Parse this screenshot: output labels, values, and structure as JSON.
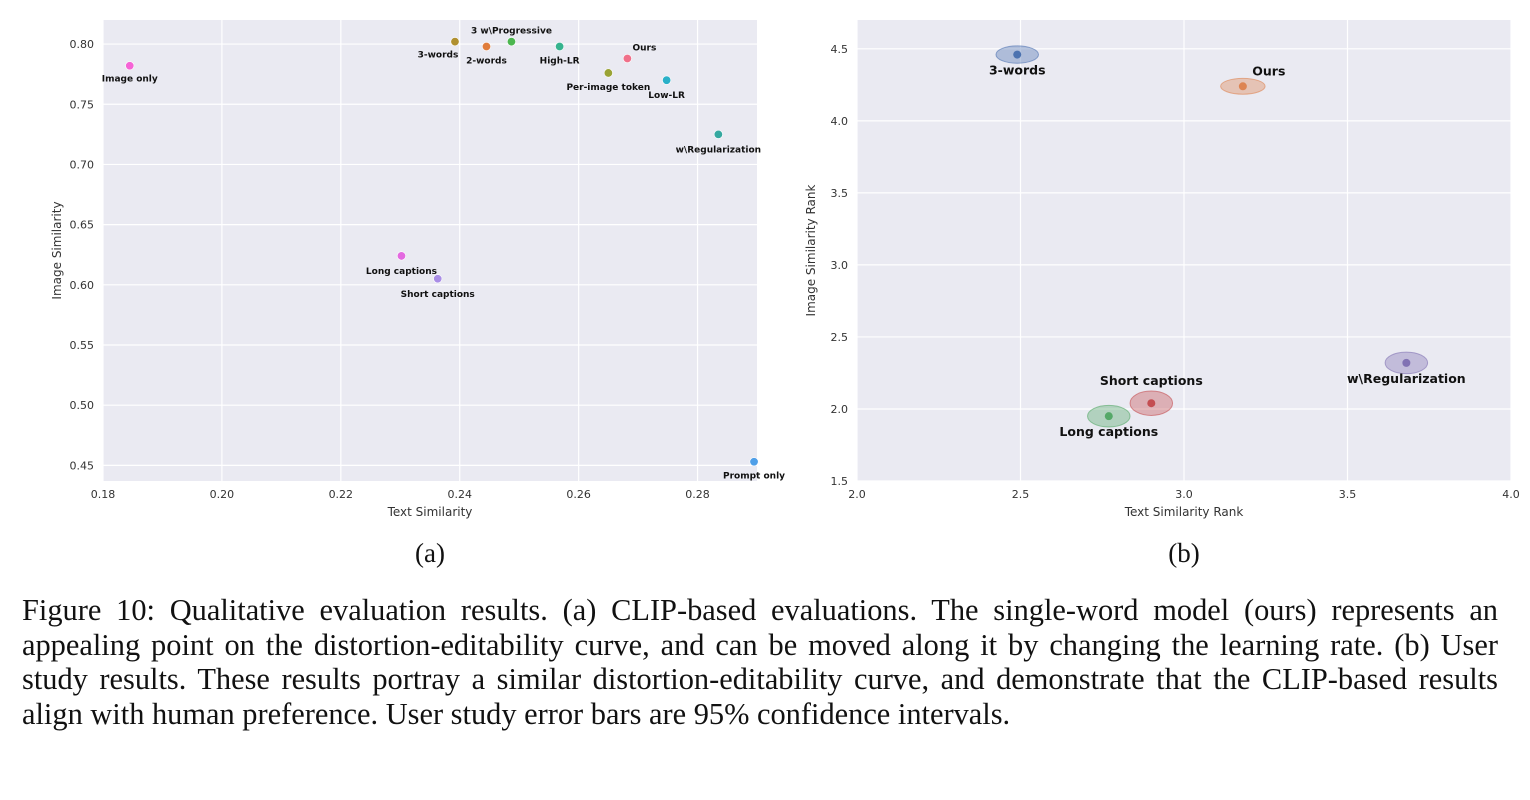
{
  "caption": "Figure 10: Qualitative evaluation results. (a) CLIP-based evaluations. The single-word model (ours) represents an appealing point on the distortion-editability curve, and can be moved along it by changing the learning rate. (b) User study results. These results portray a similar distortion-editability curve, and demonstrate that the CLIP-based results align with human preference. User study error bars are 95% confidence intervals.",
  "chart_data": [
    {
      "type": "scatter",
      "panel_label": "(a)",
      "xlabel": "Text Similarity",
      "ylabel": "Image Similarity",
      "xlim": [
        0.18,
        0.29
      ],
      "ylim": [
        0.437,
        0.82
      ],
      "xticks": [
        "0.18",
        "0.20",
        "0.22",
        "0.24",
        "0.26",
        "0.28"
      ],
      "yticks": [
        "0.45",
        "0.50",
        "0.55",
        "0.60",
        "0.65",
        "0.70",
        "0.75",
        "0.80"
      ],
      "grid": true,
      "background": "#eaeaf2",
      "points": [
        {
          "label": "Image only",
          "x": 0.1845,
          "y": 0.782,
          "color": "#f564d6"
        },
        {
          "label": "3-words",
          "x": 0.2392,
          "y": 0.802,
          "color": "#b09030"
        },
        {
          "label": "2-words",
          "x": 0.2445,
          "y": 0.798,
          "color": "#e07c3a"
        },
        {
          "label": "3 w\\Progressive",
          "x": 0.2487,
          "y": 0.802,
          "color": "#4cb64f"
        },
        {
          "label": "High-LR",
          "x": 0.2568,
          "y": 0.798,
          "color": "#36b38e"
        },
        {
          "label": "Ours",
          "x": 0.2682,
          "y": 0.788,
          "color": "#f0708a"
        },
        {
          "label": "Per-image token",
          "x": 0.265,
          "y": 0.776,
          "color": "#9aa335"
        },
        {
          "label": "Low-LR",
          "x": 0.2748,
          "y": 0.77,
          "color": "#2ab0c8"
        },
        {
          "label": "w\\Regularization",
          "x": 0.2835,
          "y": 0.725,
          "color": "#35a8a0"
        },
        {
          "label": "Long captions",
          "x": 0.2302,
          "y": 0.624,
          "color": "#e36ae0"
        },
        {
          "label": "Short captions",
          "x": 0.2363,
          "y": 0.605,
          "color": "#a98de6"
        },
        {
          "label": "Prompt only",
          "x": 0.2895,
          "y": 0.453,
          "color": "#4f9fe8"
        }
      ]
    },
    {
      "type": "scatter",
      "panel_label": "(b)",
      "xlabel": "Text Similarity Rank",
      "ylabel": "Image Similarity Rank",
      "xlim": [
        2.0,
        4.0
      ],
      "ylim": [
        1.5,
        4.7
      ],
      "xticks": [
        "2.0",
        "2.5",
        "3.0",
        "3.5",
        "4.0"
      ],
      "yticks": [
        "1.5",
        "2.0",
        "2.5",
        "3.0",
        "3.5",
        "4.0",
        "4.5"
      ],
      "grid": true,
      "background": "#eaeaf2",
      "points": [
        {
          "label": "3-words",
          "x": 2.49,
          "y": 4.46,
          "x_ci": 0.065,
          "y_ci": 0.06,
          "color": "#4c72b0"
        },
        {
          "label": "Ours",
          "x": 3.18,
          "y": 4.24,
          "x_ci": 0.068,
          "y_ci": 0.055,
          "color": "#dd8452"
        },
        {
          "label": "w\\Regularization",
          "x": 3.68,
          "y": 2.32,
          "x_ci": 0.065,
          "y_ci": 0.075,
          "color": "#8172b3"
        },
        {
          "label": "Short captions",
          "x": 2.9,
          "y": 2.04,
          "x_ci": 0.065,
          "y_ci": 0.085,
          "color": "#c44e52"
        },
        {
          "label": "Long captions",
          "x": 2.77,
          "y": 1.95,
          "x_ci": 0.065,
          "y_ci": 0.075,
          "color": "#55a868"
        }
      ]
    }
  ]
}
